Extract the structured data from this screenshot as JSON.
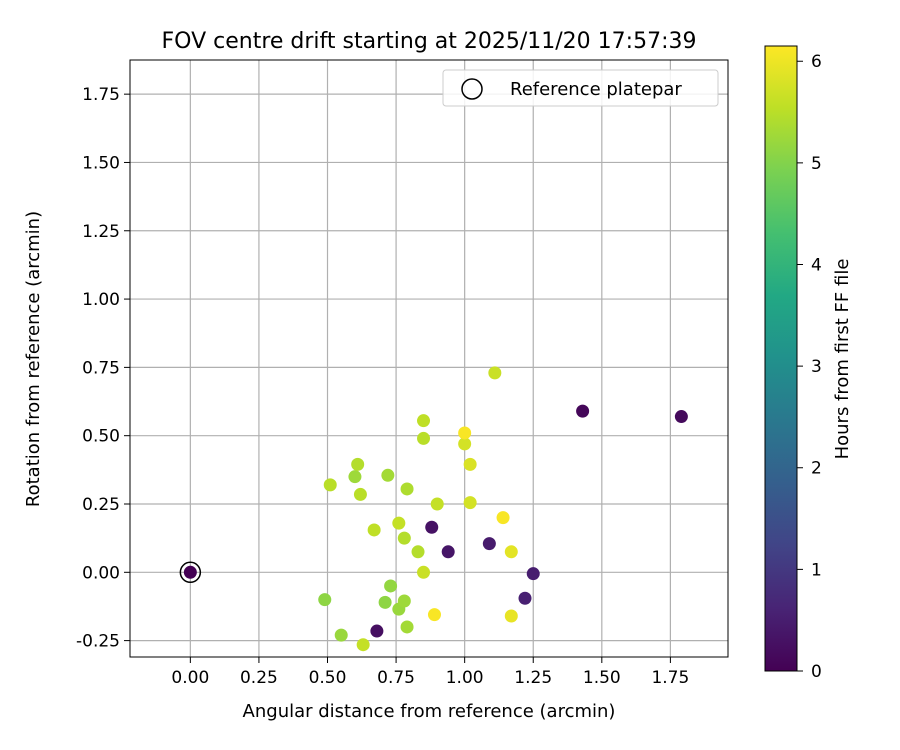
{
  "chart_data": {
    "type": "scatter",
    "title": "FOV centre drift starting at 2025/11/20 17:57:39",
    "xlabel": "Angular distance from reference (arcmin)",
    "ylabel": "Rotation from reference (arcmin)",
    "xlim": [
      -0.22,
      1.96
    ],
    "ylim": [
      -0.31,
      1.875
    ],
    "xticks": [
      "0.00",
      "0.25",
      "0.50",
      "0.75",
      "1.00",
      "1.25",
      "1.50",
      "1.75"
    ],
    "yticks": [
      "-0.25",
      "0.00",
      "0.25",
      "0.50",
      "0.75",
      "1.00",
      "1.25",
      "1.50",
      "1.75"
    ],
    "grid": true,
    "legend_position": "top-right",
    "legend": [
      {
        "label": "Reference platepar",
        "marker": "hollow-circle",
        "x": 0.0,
        "y": 0.0
      }
    ],
    "colorbar": {
      "label": "Hours from first FF file",
      "range": [
        0,
        6.15
      ],
      "ticks": [
        "0",
        "1",
        "2",
        "3",
        "4",
        "5",
        "6"
      ],
      "colormap": "viridis"
    },
    "points": [
      {
        "x": 0.0,
        "y": 0.0,
        "hours": 0.0
      },
      {
        "x": 1.43,
        "y": 0.59,
        "hours": 0.1
      },
      {
        "x": 1.79,
        "y": 0.57,
        "hours": 0.15
      },
      {
        "x": 0.88,
        "y": 0.165,
        "hours": 0.3
      },
      {
        "x": 0.94,
        "y": 0.075,
        "hours": 0.35
      },
      {
        "x": 1.09,
        "y": 0.105,
        "hours": 0.45
      },
      {
        "x": 1.25,
        "y": -0.005,
        "hours": 0.5
      },
      {
        "x": 1.22,
        "y": -0.095,
        "hours": 0.55
      },
      {
        "x": 0.68,
        "y": -0.215,
        "hours": 0.25
      },
      {
        "x": 0.49,
        "y": -0.1,
        "hours": 5.1
      },
      {
        "x": 0.55,
        "y": -0.23,
        "hours": 5.2
      },
      {
        "x": 0.71,
        "y": -0.11,
        "hours": 5.1
      },
      {
        "x": 0.73,
        "y": -0.05,
        "hours": 5.15
      },
      {
        "x": 0.76,
        "y": -0.135,
        "hours": 5.2
      },
      {
        "x": 0.78,
        "y": -0.105,
        "hours": 5.25
      },
      {
        "x": 0.79,
        "y": -0.2,
        "hours": 5.3
      },
      {
        "x": 0.63,
        "y": -0.265,
        "hours": 5.6
      },
      {
        "x": 0.51,
        "y": 0.32,
        "hours": 5.5
      },
      {
        "x": 0.6,
        "y": 0.35,
        "hours": 5.25
      },
      {
        "x": 0.61,
        "y": 0.395,
        "hours": 5.45
      },
      {
        "x": 0.62,
        "y": 0.285,
        "hours": 5.5
      },
      {
        "x": 0.67,
        "y": 0.155,
        "hours": 5.55
      },
      {
        "x": 0.72,
        "y": 0.355,
        "hours": 5.3
      },
      {
        "x": 0.76,
        "y": 0.18,
        "hours": 5.6
      },
      {
        "x": 0.78,
        "y": 0.125,
        "hours": 5.45
      },
      {
        "x": 0.79,
        "y": 0.305,
        "hours": 5.4
      },
      {
        "x": 0.83,
        "y": 0.075,
        "hours": 5.45
      },
      {
        "x": 0.85,
        "y": 0.49,
        "hours": 5.5
      },
      {
        "x": 0.85,
        "y": 0.555,
        "hours": 5.55
      },
      {
        "x": 0.85,
        "y": 0.0,
        "hours": 5.65
      },
      {
        "x": 0.9,
        "y": 0.25,
        "hours": 5.6
      },
      {
        "x": 0.89,
        "y": -0.155,
        "hours": 6.1
      },
      {
        "x": 1.0,
        "y": 0.47,
        "hours": 5.75
      },
      {
        "x": 1.0,
        "y": 0.51,
        "hours": 6.1
      },
      {
        "x": 1.02,
        "y": 0.395,
        "hours": 5.8
      },
      {
        "x": 1.02,
        "y": 0.255,
        "hours": 5.75
      },
      {
        "x": 1.11,
        "y": 0.73,
        "hours": 5.65
      },
      {
        "x": 1.14,
        "y": 0.2,
        "hours": 6.1
      },
      {
        "x": 1.17,
        "y": 0.075,
        "hours": 5.9
      },
      {
        "x": 1.17,
        "y": -0.16,
        "hours": 5.95
      }
    ]
  }
}
